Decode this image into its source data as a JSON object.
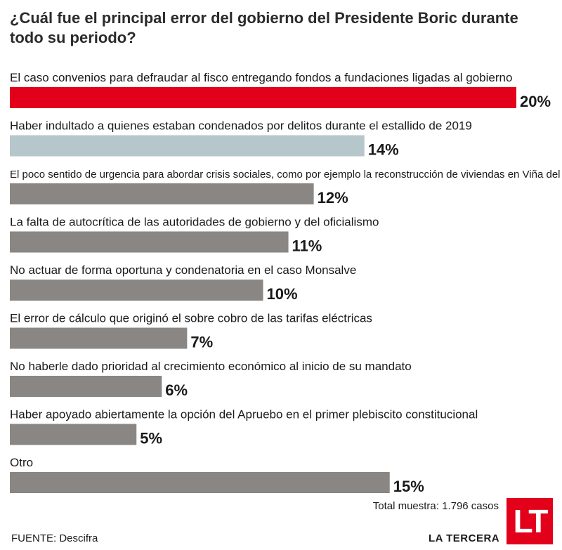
{
  "title": "¿Cuál fue el principal error del gobierno del Presidente Boric durante todo su periodo?",
  "note": "Total muestra: 1.796 casos",
  "source": "FUENTE: Descifra",
  "brand": "LA TERCERA",
  "logo_text": "LT",
  "colors": {
    "highlight": "#e2001a",
    "second": "#b6c7cc",
    "default": "#8a8683"
  },
  "chart_data": {
    "type": "bar",
    "orientation": "horizontal",
    "title": "¿Cuál fue el principal error del gobierno del Presidente Boric durante todo su periodo?",
    "xlabel": "",
    "ylabel": "",
    "xlim": [
      0,
      20
    ],
    "value_suffix": "%",
    "categories": [
      "El caso convenios para defraudar al fisco entregando fondos a fundaciones ligadas al gobierno",
      "Haber indultado a quienes estaban condenados por delitos durante el estallido de 2019",
      "El poco sentido de urgencia para abordar crisis sociales, como por ejemplo la reconstrucción de viviendas en Viña del Mar",
      "La falta de autocrítica de las autoridades de gobierno y del oficialismo",
      "No actuar de forma oportuna y condenatoria en el caso Monsalve",
      "El error de cálculo que originó el sobre cobro de las tarifas eléctricas",
      "No haberle dado prioridad al crecimiento económico al inicio de su mandato",
      "Haber apoyado abiertamente la opción del Apruebo en el primer plebiscito constitucional",
      "Otro"
    ],
    "values": [
      20,
      14,
      12,
      11,
      10,
      7,
      6,
      5,
      15
    ],
    "bar_colors": [
      "#e2001a",
      "#b6c7cc",
      "#8a8683",
      "#8a8683",
      "#8a8683",
      "#8a8683",
      "#8a8683",
      "#8a8683",
      "#8a8683"
    ],
    "grid": false,
    "legend": "none"
  }
}
